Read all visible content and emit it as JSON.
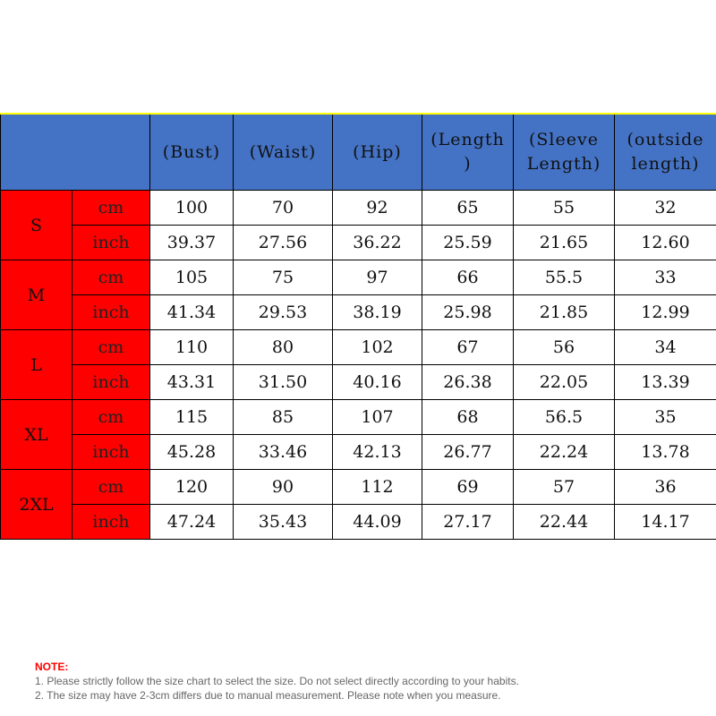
{
  "headers": [
    "(Bust)",
    "(Waist)",
    "(Hip)",
    "(Length\n)",
    "(Sleeve\nLength)",
    "(outside\nlength)"
  ],
  "sizes": [
    {
      "name": "S",
      "cm": [
        "100",
        "70",
        "92",
        "65",
        "55",
        "32"
      ],
      "inch": [
        "39.37",
        "27.56",
        "36.22",
        "25.59",
        "21.65",
        "12.60"
      ]
    },
    {
      "name": "M",
      "cm": [
        "105",
        "75",
        "97",
        "66",
        "55.5",
        "33"
      ],
      "inch": [
        "41.34",
        "29.53",
        "38.19",
        "25.98",
        "21.85",
        "12.99"
      ]
    },
    {
      "name": "L",
      "cm": [
        "110",
        "80",
        "102",
        "67",
        "56",
        "34"
      ],
      "inch": [
        "43.31",
        "31.50",
        "40.16",
        "26.38",
        "22.05",
        "13.39"
      ]
    },
    {
      "name": "XL",
      "cm": [
        "115",
        "85",
        "107",
        "68",
        "56.5",
        "35"
      ],
      "inch": [
        "45.28",
        "33.46",
        "42.13",
        "26.77",
        "22.24",
        "13.78"
      ]
    },
    {
      "name": "2XL",
      "cm": [
        "120",
        "90",
        "112",
        "69",
        "57",
        "36"
      ],
      "inch": [
        "47.24",
        "35.43",
        "44.09",
        "27.17",
        "22.44",
        "14.17"
      ]
    }
  ],
  "unit_labels": {
    "cm": "cm",
    "inch": "inch"
  },
  "note": {
    "title": "NOTE:",
    "line1": "1. Please strictly follow the size chart  to select the size. Do not select directly according to your habits.",
    "line2": "2. The size may have 2-3cm differs due to manual measurement. Please note when you measure."
  },
  "colors": {
    "header_bg": "#4472c4",
    "size_bg": "#ff0000",
    "note_title": "#ff0000"
  }
}
